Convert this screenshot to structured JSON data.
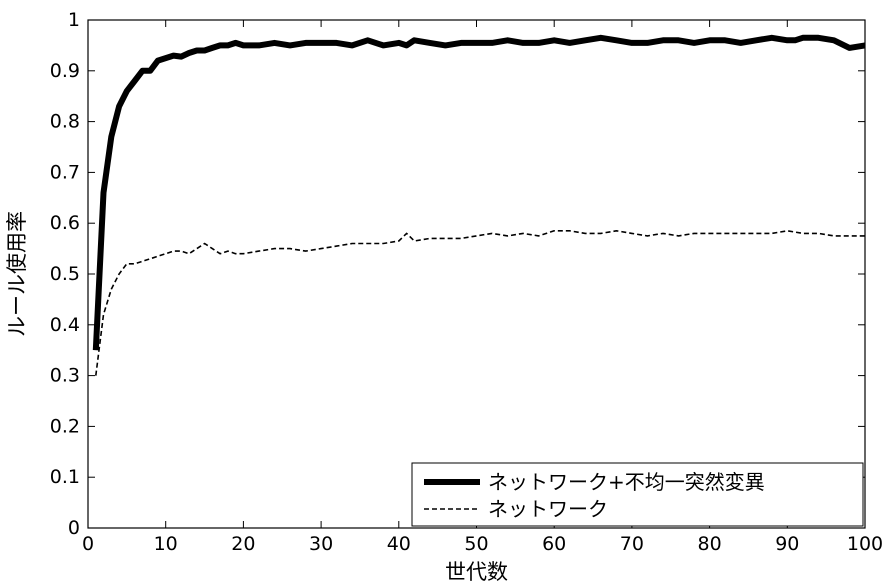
{
  "chart_data": {
    "type": "line",
    "xlabel": "世代数",
    "ylabel": "ルール使用率",
    "xlim": [
      0,
      100
    ],
    "ylim": [
      0,
      1
    ],
    "x_ticks": [
      0,
      10,
      20,
      30,
      40,
      50,
      60,
      70,
      80,
      90,
      100
    ],
    "y_ticks": [
      0,
      0.1,
      0.2,
      0.3,
      0.4,
      0.5,
      0.6,
      0.7,
      0.8,
      0.9,
      1
    ],
    "x_tick_labels": [
      "0",
      "10",
      "20",
      "30",
      "40",
      "50",
      "60",
      "70",
      "80",
      "90",
      "100"
    ],
    "y_tick_labels": [
      "0",
      "0.1",
      "0.2",
      "0.3",
      "0.4",
      "0.5",
      "0.6",
      "0.7",
      "0.8",
      "0.9",
      "1"
    ],
    "grid": false,
    "legend_position": "bottom-right",
    "series": [
      {
        "name": "ネットワーク+不均一突然変異",
        "style": "solid-thick",
        "color": "#000000",
        "x": [
          1,
          2,
          3,
          4,
          5,
          6,
          7,
          8,
          9,
          10,
          11,
          12,
          13,
          14,
          15,
          16,
          17,
          18,
          19,
          20,
          22,
          24,
          26,
          28,
          30,
          32,
          34,
          36,
          38,
          40,
          41,
          42,
          44,
          46,
          48,
          50,
          52,
          54,
          56,
          58,
          60,
          62,
          64,
          66,
          68,
          70,
          72,
          74,
          76,
          78,
          80,
          82,
          84,
          86,
          88,
          90,
          91,
          92,
          94,
          96,
          98,
          100
        ],
        "y": [
          0.35,
          0.66,
          0.77,
          0.83,
          0.86,
          0.88,
          0.9,
          0.9,
          0.92,
          0.925,
          0.93,
          0.928,
          0.935,
          0.94,
          0.94,
          0.945,
          0.95,
          0.95,
          0.955,
          0.95,
          0.95,
          0.955,
          0.95,
          0.955,
          0.955,
          0.955,
          0.95,
          0.96,
          0.95,
          0.955,
          0.95,
          0.96,
          0.955,
          0.95,
          0.955,
          0.955,
          0.955,
          0.96,
          0.955,
          0.955,
          0.96,
          0.955,
          0.96,
          0.965,
          0.96,
          0.955,
          0.955,
          0.96,
          0.96,
          0.955,
          0.96,
          0.96,
          0.955,
          0.96,
          0.965,
          0.96,
          0.96,
          0.965,
          0.965,
          0.96,
          0.945,
          0.95
        ]
      },
      {
        "name": "ネットワーク",
        "style": "dashed",
        "color": "#000000",
        "x": [
          1,
          2,
          3,
          4,
          5,
          6,
          7,
          8,
          9,
          10,
          11,
          12,
          13,
          14,
          15,
          16,
          17,
          18,
          19,
          20,
          22,
          24,
          26,
          28,
          30,
          32,
          34,
          36,
          38,
          40,
          41,
          42,
          44,
          46,
          48,
          50,
          52,
          54,
          56,
          58,
          60,
          62,
          64,
          66,
          68,
          70,
          72,
          74,
          76,
          78,
          80,
          82,
          84,
          86,
          88,
          90,
          92,
          94,
          96,
          98,
          100
        ],
        "y": [
          0.3,
          0.42,
          0.47,
          0.5,
          0.52,
          0.52,
          0.525,
          0.53,
          0.535,
          0.54,
          0.545,
          0.545,
          0.54,
          0.55,
          0.56,
          0.55,
          0.54,
          0.545,
          0.54,
          0.54,
          0.545,
          0.55,
          0.55,
          0.545,
          0.55,
          0.555,
          0.56,
          0.56,
          0.56,
          0.565,
          0.58,
          0.565,
          0.57,
          0.57,
          0.57,
          0.575,
          0.58,
          0.575,
          0.58,
          0.575,
          0.585,
          0.585,
          0.58,
          0.58,
          0.585,
          0.58,
          0.575,
          0.58,
          0.575,
          0.58,
          0.58,
          0.58,
          0.58,
          0.58,
          0.58,
          0.585,
          0.58,
          0.58,
          0.575,
          0.575,
          0.575
        ]
      }
    ]
  }
}
